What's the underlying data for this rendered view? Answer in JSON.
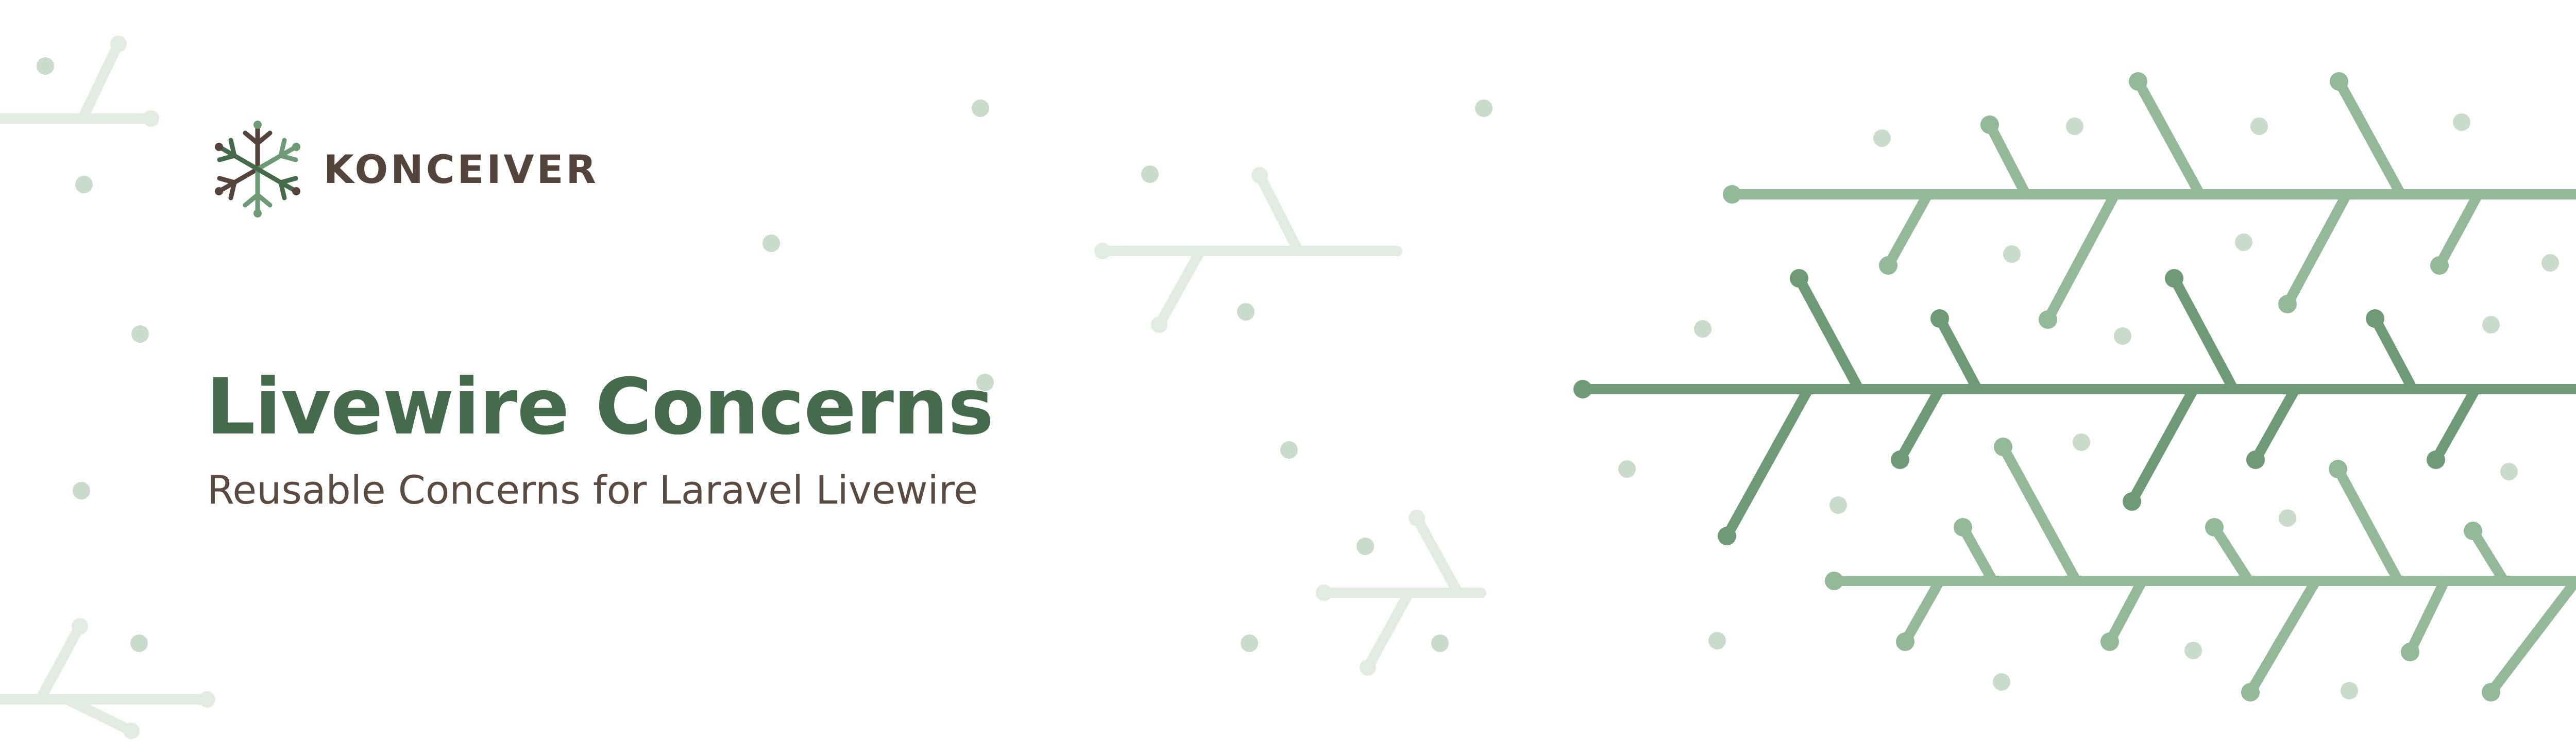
{
  "brand": {
    "name": "KONCEIVER",
    "logo_icon": "snowflake-branch-logo-icon"
  },
  "hero": {
    "title": "Livewire Concerns",
    "subtitle": "Reusable Concerns for Laravel Livewire"
  },
  "colors": {
    "title": "#466a4c",
    "text": "#54443b",
    "branch_dark": "#6f9a76",
    "branch_light": "#93b998",
    "faint": "#e2ebe2",
    "dot": "#c9dbca"
  }
}
